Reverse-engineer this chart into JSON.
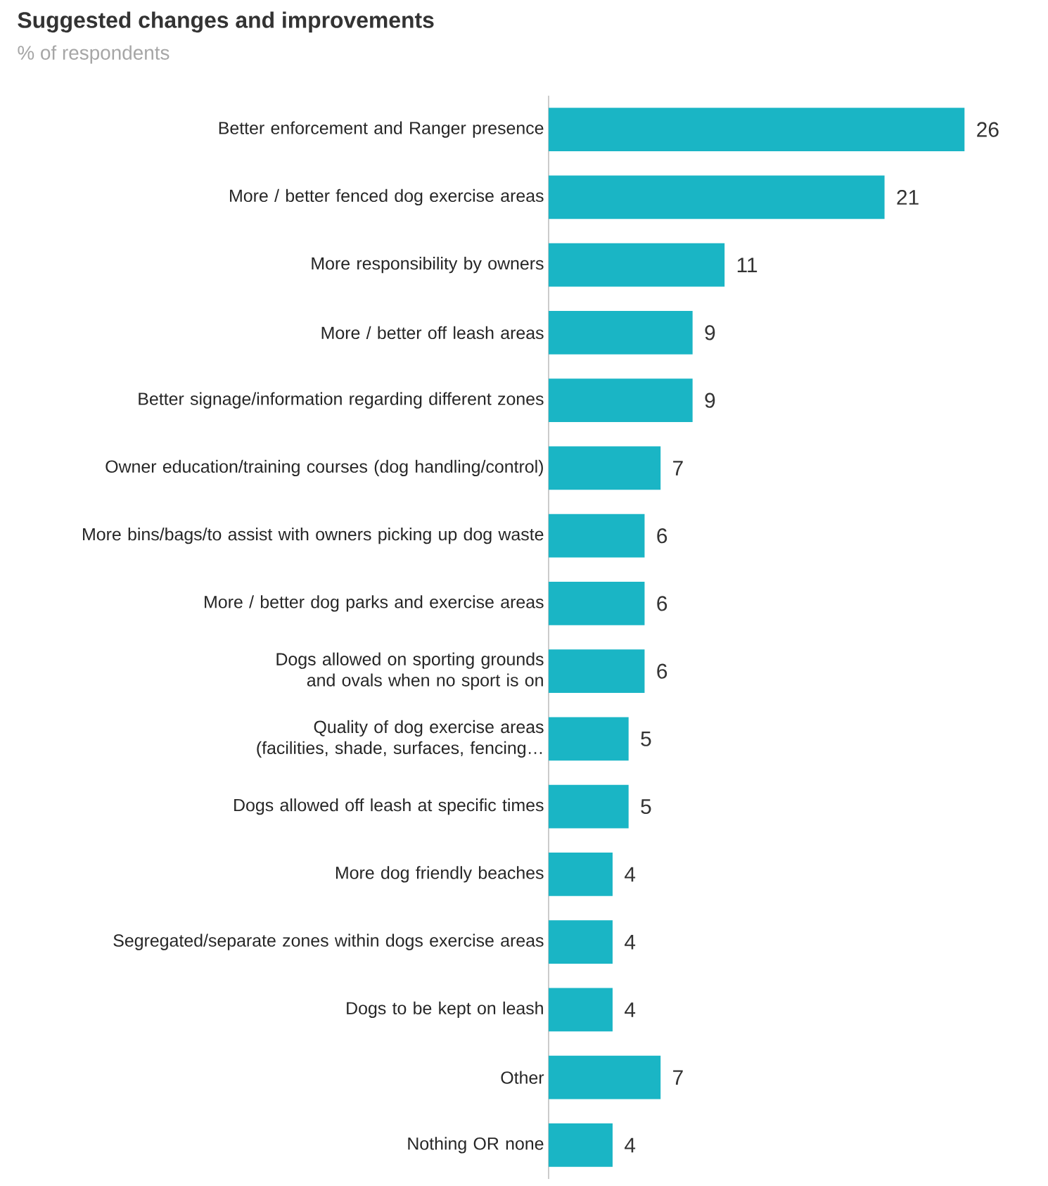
{
  "chart_data": {
    "type": "bar",
    "orientation": "horizontal",
    "title": "Suggested changes and improvements",
    "subtitle": "% of respondents",
    "categories": [
      "Better enforcement and Ranger presence",
      "More / better fenced dog exercise areas",
      "More responsibility by owners",
      "More / better off leash areas",
      "Better signage/information regarding different zones",
      "Owner education/training courses (dog handling/control)",
      "More bins/bags/to assist with owners picking up dog waste",
      "More / better dog parks and exercise areas",
      "Dogs allowed on sporting grounds and ovals when no sport is on",
      "Quality of dog exercise areas (facilities, shade, surfaces, fencing…",
      "Dogs allowed off leash at specific times",
      "More dog friendly beaches",
      "Segregated/separate zones within dogs exercise areas",
      "Dogs to be kept on leash",
      "Other",
      "Nothing OR none"
    ],
    "values": [
      26,
      21,
      11,
      9,
      9,
      7,
      6,
      6,
      6,
      5,
      5,
      4,
      4,
      4,
      7,
      4
    ],
    "color": "#1ab5c5",
    "data_labels": true
  }
}
